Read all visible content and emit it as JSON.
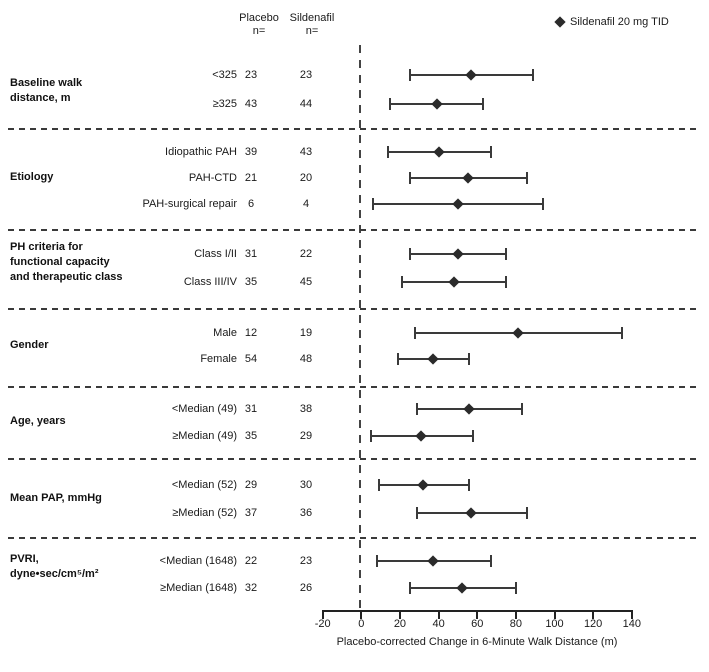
{
  "columns": {
    "placebo_header": "Placebo\nn=",
    "sildenafil_header": "Sildenafil\nn="
  },
  "colors": {
    "marker": "#2b2b2b",
    "line": "#3a3a3a",
    "text": "#1a1a1a"
  },
  "chart_data": {
    "type": "forest",
    "legend": {
      "marker": "diamond",
      "label": "Sildenafil 20 mg TID"
    },
    "xlabel": "Placebo-corrected Change in 6-Minute Walk Distance (m)",
    "xlim": [
      -20,
      140
    ],
    "x_ticks": [
      -20,
      0,
      20,
      40,
      60,
      80,
      100,
      120,
      140
    ],
    "reference_line": 0,
    "groups": [
      {
        "label": "Baseline walk distance, m",
        "rows": [
          {
            "subgroup": "<325",
            "placebo_n": 23,
            "sildenafil_n": 23,
            "estimate": 57,
            "ci": [
              25,
              89
            ]
          },
          {
            "subgroup": "≥325",
            "placebo_n": 43,
            "sildenafil_n": 44,
            "estimate": 39,
            "ci": [
              15,
              63
            ]
          }
        ]
      },
      {
        "label": "Etiology",
        "rows": [
          {
            "subgroup": "Idiopathic PAH",
            "placebo_n": 39,
            "sildenafil_n": 43,
            "estimate": 40,
            "ci": [
              14,
              67
            ]
          },
          {
            "subgroup": "PAH-CTD",
            "placebo_n": 21,
            "sildenafil_n": 20,
            "estimate": 55,
            "ci": [
              25,
              86
            ]
          },
          {
            "subgroup": "PAH-surgical repair",
            "placebo_n": 6,
            "sildenafil_n": 4,
            "estimate": 50,
            "ci": [
              6,
              94
            ]
          }
        ]
      },
      {
        "label": "PH criteria for functional capacity and therapeutic class",
        "rows": [
          {
            "subgroup": "Class I/II",
            "placebo_n": 31,
            "sildenafil_n": 22,
            "estimate": 50,
            "ci": [
              25,
              75
            ]
          },
          {
            "subgroup": "Class III/IV",
            "placebo_n": 35,
            "sildenafil_n": 45,
            "estimate": 48,
            "ci": [
              21,
              75
            ]
          }
        ]
      },
      {
        "label": "Gender",
        "rows": [
          {
            "subgroup": "Male",
            "placebo_n": 12,
            "sildenafil_n": 19,
            "estimate": 81,
            "ci": [
              28,
              135
            ]
          },
          {
            "subgroup": "Female",
            "placebo_n": 54,
            "sildenafil_n": 48,
            "estimate": 37,
            "ci": [
              19,
              56
            ]
          }
        ]
      },
      {
        "label": "Age, years",
        "rows": [
          {
            "subgroup": "<Median (49)",
            "placebo_n": 31,
            "sildenafil_n": 38,
            "estimate": 56,
            "ci": [
              29,
              83
            ]
          },
          {
            "subgroup": "≥Median (49)",
            "placebo_n": 35,
            "sildenafil_n": 29,
            "estimate": 31,
            "ci": [
              5,
              58
            ]
          }
        ]
      },
      {
        "label": "Mean PAP, mmHg",
        "rows": [
          {
            "subgroup": "<Median (52)",
            "placebo_n": 29,
            "sildenafil_n": 30,
            "estimate": 32,
            "ci": [
              9,
              56
            ]
          },
          {
            "subgroup": "≥Median (52)",
            "placebo_n": 37,
            "sildenafil_n": 36,
            "estimate": 57,
            "ci": [
              29,
              86
            ]
          }
        ]
      },
      {
        "label": "PVRI, dyne•sec/cm⁵/m²",
        "rows": [
          {
            "subgroup": "<Median (1648)",
            "placebo_n": 22,
            "sildenafil_n": 23,
            "estimate": 37,
            "ci": [
              8,
              67
            ]
          },
          {
            "subgroup": "≥Median (1648)",
            "placebo_n": 32,
            "sildenafil_n": 26,
            "estimate": 52,
            "ci": [
              25,
              80
            ]
          }
        ]
      }
    ]
  }
}
